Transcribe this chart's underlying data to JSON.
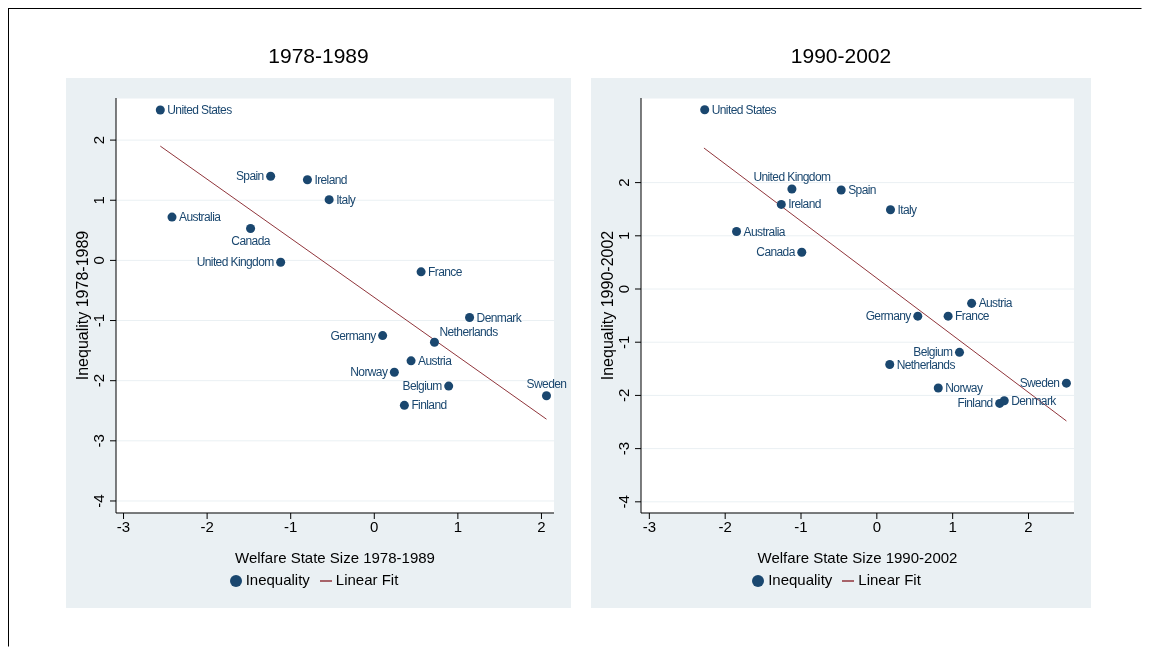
{
  "chart_data": [
    {
      "type": "scatter",
      "title": "1978-1989",
      "xlabel": "Welfare State Size 1978-1989",
      "ylabel": "Inequality 1978-1989",
      "xlim": [
        -3.09,
        2.15
      ],
      "ylim": [
        -4.2,
        2.7
      ],
      "xticks": [
        -3,
        -2,
        -1,
        0,
        1,
        2
      ],
      "yticks": [
        -4,
        -3,
        -2,
        -1,
        0,
        1,
        2
      ],
      "grid": "y",
      "legend": "bottom",
      "series": [
        {
          "name": "Inequality",
          "marker": "circle",
          "color": "#1a476f",
          "x": [
            -2.56,
            -1.24,
            -0.8,
            -0.54,
            -2.42,
            -1.48,
            -1.12,
            0.56,
            1.14,
            0.1,
            0.72,
            0.44,
            0.24,
            0.89,
            0.36,
            2.06
          ],
          "values": [
            2.5,
            1.4,
            1.34,
            1.01,
            0.72,
            0.53,
            -0.03,
            -0.19,
            -0.95,
            -1.25,
            -1.36,
            -1.67,
            -1.86,
            -2.09,
            -2.41,
            -2.25
          ]
        },
        {
          "name": "Linear Fit",
          "type": "line",
          "marker": "none",
          "color": "#90353b",
          "x": [
            -2.56,
            2.06
          ],
          "values": [
            1.9,
            -2.64
          ]
        }
      ],
      "annotations": [
        {
          "text": "United States",
          "x": -2.56,
          "y": 2.5
        },
        {
          "text": "Spain",
          "x": -1.24,
          "y": 1.4
        },
        {
          "text": "Ireland",
          "x": -0.8,
          "y": 1.34
        },
        {
          "text": "Italy",
          "x": -0.54,
          "y": 1.01
        },
        {
          "text": "Australia",
          "x": -2.42,
          "y": 0.72
        },
        {
          "text": "Canada",
          "x": -1.48,
          "y": 0.53
        },
        {
          "text": "United Kingdom",
          "x": -1.12,
          "y": -0.03
        },
        {
          "text": "France",
          "x": 0.56,
          "y": -0.19
        },
        {
          "text": "Denmark",
          "x": 1.14,
          "y": -0.95
        },
        {
          "text": "Germany",
          "x": 0.1,
          "y": -1.25
        },
        {
          "text": "Netherlands",
          "x": 0.72,
          "y": -1.36
        },
        {
          "text": "Austria",
          "x": 0.44,
          "y": -1.67
        },
        {
          "text": "Norway",
          "x": 0.24,
          "y": -1.86
        },
        {
          "text": "Belgium",
          "x": 0.89,
          "y": -2.09
        },
        {
          "text": "Finland",
          "x": 0.36,
          "y": -2.41
        },
        {
          "text": "Sweden",
          "x": 2.06,
          "y": -2.25
        }
      ]
    },
    {
      "type": "scatter",
      "title": "1990-2002",
      "xlabel": "Welfare State Size 1990-2002",
      "ylabel": "Inequality 1990-2002",
      "xlim": [
        -3.11,
        2.6
      ],
      "ylim": [
        -4.21,
        3.59
      ],
      "xticks": [
        -3,
        -2,
        -1,
        0,
        1,
        2
      ],
      "yticks": [
        -4,
        -3,
        -2,
        -1,
        0,
        1,
        2
      ],
      "grid": "y",
      "legend": "bottom",
      "series": [
        {
          "name": "Inequality",
          "marker": "circle",
          "color": "#1a476f",
          "x": [
            -2.27,
            -1.12,
            -0.47,
            -1.26,
            0.18,
            -1.85,
            -0.99,
            1.25,
            0.54,
            0.94,
            1.09,
            0.17,
            0.81,
            1.62,
            1.68,
            2.5
          ],
          "values": [
            3.37,
            1.88,
            1.86,
            1.59,
            1.49,
            1.08,
            0.69,
            -0.27,
            -0.51,
            -0.51,
            -1.19,
            -1.42,
            -1.86,
            -2.15,
            -2.1,
            -1.77
          ]
        },
        {
          "name": "Linear Fit",
          "type": "line",
          "marker": "none",
          "color": "#90353b",
          "x": [
            -2.28,
            2.5
          ],
          "values": [
            2.65,
            -2.48
          ]
        }
      ],
      "annotations": [
        {
          "text": "United States",
          "x": -2.27,
          "y": 3.37
        },
        {
          "text": "United Kingdom",
          "x": -1.12,
          "y": 1.88
        },
        {
          "text": "Spain",
          "x": -0.47,
          "y": 1.86
        },
        {
          "text": "Ireland",
          "x": -1.26,
          "y": 1.59
        },
        {
          "text": "Italy",
          "x": 0.18,
          "y": 1.49
        },
        {
          "text": "Australia",
          "x": -1.85,
          "y": 1.08
        },
        {
          "text": "Canada",
          "x": -0.99,
          "y": 0.69
        },
        {
          "text": "Austria",
          "x": 1.25,
          "y": -0.27
        },
        {
          "text": "Germany",
          "x": 0.54,
          "y": -0.51
        },
        {
          "text": "France",
          "x": 0.94,
          "y": -0.51
        },
        {
          "text": "Belgium",
          "x": 1.09,
          "y": -1.19
        },
        {
          "text": "Netherlands",
          "x": 0.17,
          "y": -1.42
        },
        {
          "text": "Norway",
          "x": 0.81,
          "y": -1.86
        },
        {
          "text": "Finland",
          "x": 1.62,
          "y": -2.15
        },
        {
          "text": "Denmark",
          "x": 1.68,
          "y": -2.1
        },
        {
          "text": "Sweden",
          "x": 2.5,
          "y": -1.77
        }
      ]
    }
  ]
}
